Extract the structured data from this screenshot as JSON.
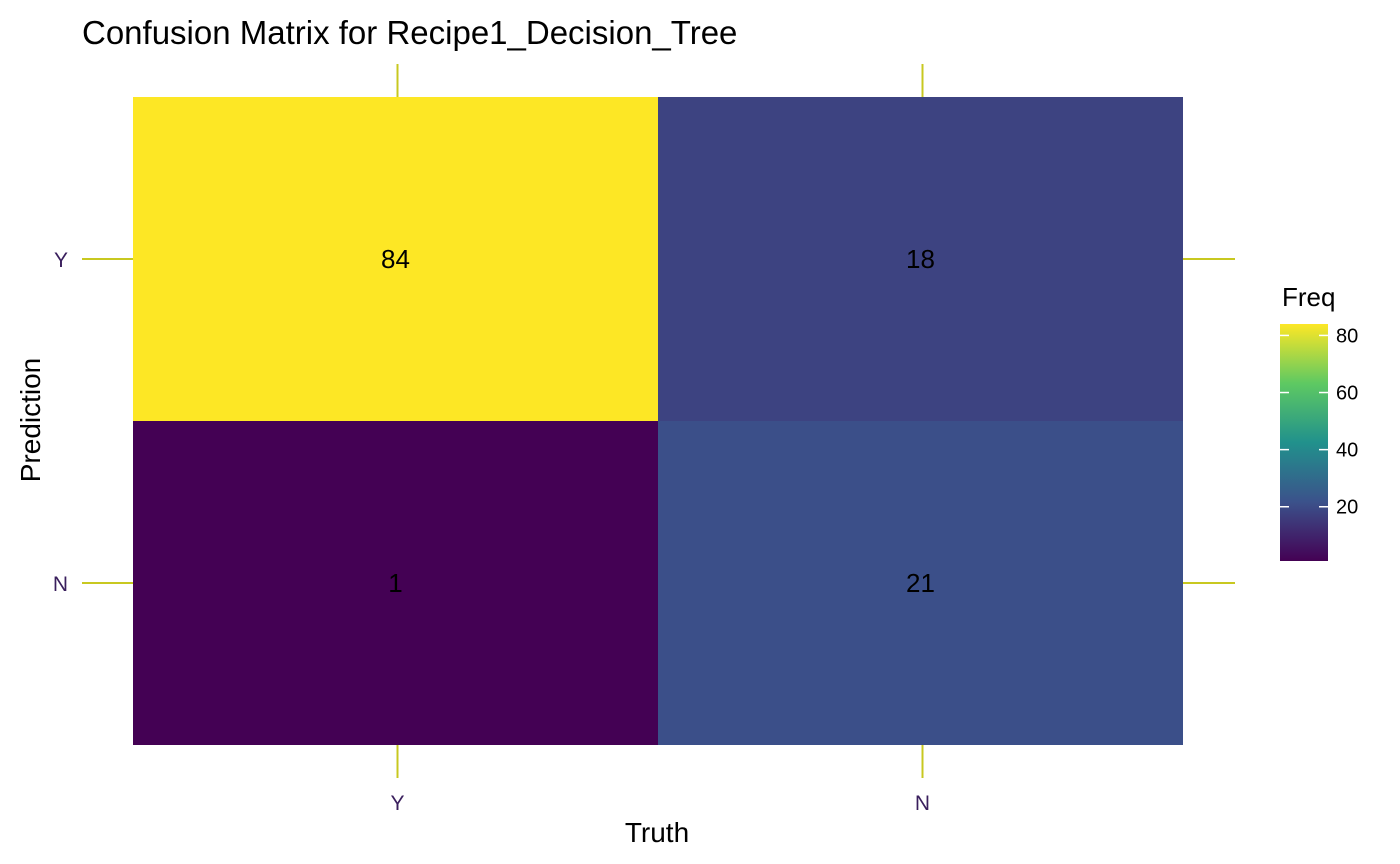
{
  "chart_data": {
    "type": "heatmap",
    "title": "Confusion Matrix for Recipe1_Decision_Tree",
    "xlabel": "Truth",
    "ylabel": "Prediction",
    "x_categories": [
      "Y",
      "N"
    ],
    "y_categories": [
      "Y",
      "N"
    ],
    "cells": [
      {
        "truth": "Y",
        "prediction": "Y",
        "value": 84,
        "label": "84"
      },
      {
        "truth": "N",
        "prediction": "Y",
        "value": 18,
        "label": "18"
      },
      {
        "truth": "Y",
        "prediction": "N",
        "value": 1,
        "label": "1"
      },
      {
        "truth": "N",
        "prediction": "N",
        "value": 21,
        "label": "21"
      }
    ],
    "legend": {
      "title": "Freq",
      "position": "right",
      "range": [
        1,
        84
      ],
      "ticks": [
        20,
        40,
        60,
        80
      ],
      "tick_labels": [
        "20",
        "40",
        "60",
        "80"
      ]
    },
    "colors": {
      "viridis": [
        "#440154",
        "#3b528b",
        "#21918c",
        "#5ec962",
        "#fde725"
      ],
      "tick_mark": "#c8c820"
    }
  }
}
